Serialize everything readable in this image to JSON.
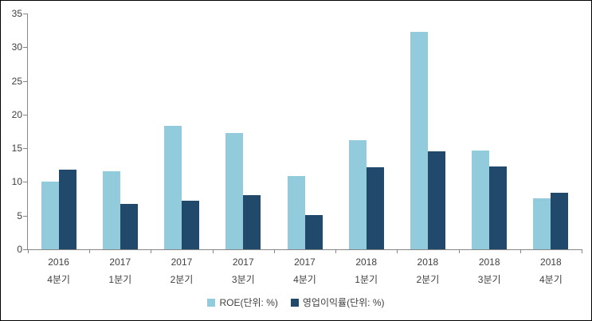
{
  "chart_data": {
    "type": "bar",
    "categories": [
      {
        "year": "2016",
        "quarter": "4분기"
      },
      {
        "year": "2017",
        "quarter": "1분기"
      },
      {
        "year": "2017",
        "quarter": "2분기"
      },
      {
        "year": "2017",
        "quarter": "3분기"
      },
      {
        "year": "2017",
        "quarter": "4분기"
      },
      {
        "year": "2018",
        "quarter": "1분기"
      },
      {
        "year": "2018",
        "quarter": "2분기"
      },
      {
        "year": "2018",
        "quarter": "3분기"
      },
      {
        "year": "2018",
        "quarter": "4분기"
      }
    ],
    "series": [
      {
        "name": "ROE(단위: %)",
        "color": "#92CBDC",
        "values": [
          10.0,
          11.6,
          18.3,
          17.3,
          10.9,
          16.2,
          32.3,
          14.7,
          7.6
        ]
      },
      {
        "name": "영업이익률(단위: %)",
        "color": "#21496C",
        "values": [
          11.8,
          6.7,
          7.2,
          8.1,
          5.1,
          12.2,
          14.5,
          12.3,
          8.4
        ]
      }
    ],
    "ylim": [
      0,
      35
    ],
    "ytick_step": 5,
    "yticks": [
      "0",
      "5",
      "10",
      "15",
      "20",
      "25",
      "30",
      "35"
    ],
    "grid": false,
    "legend_position": "bottom",
    "axis_color": "#868686",
    "text_color": "#404040",
    "background_color": "#FFFFFF"
  }
}
